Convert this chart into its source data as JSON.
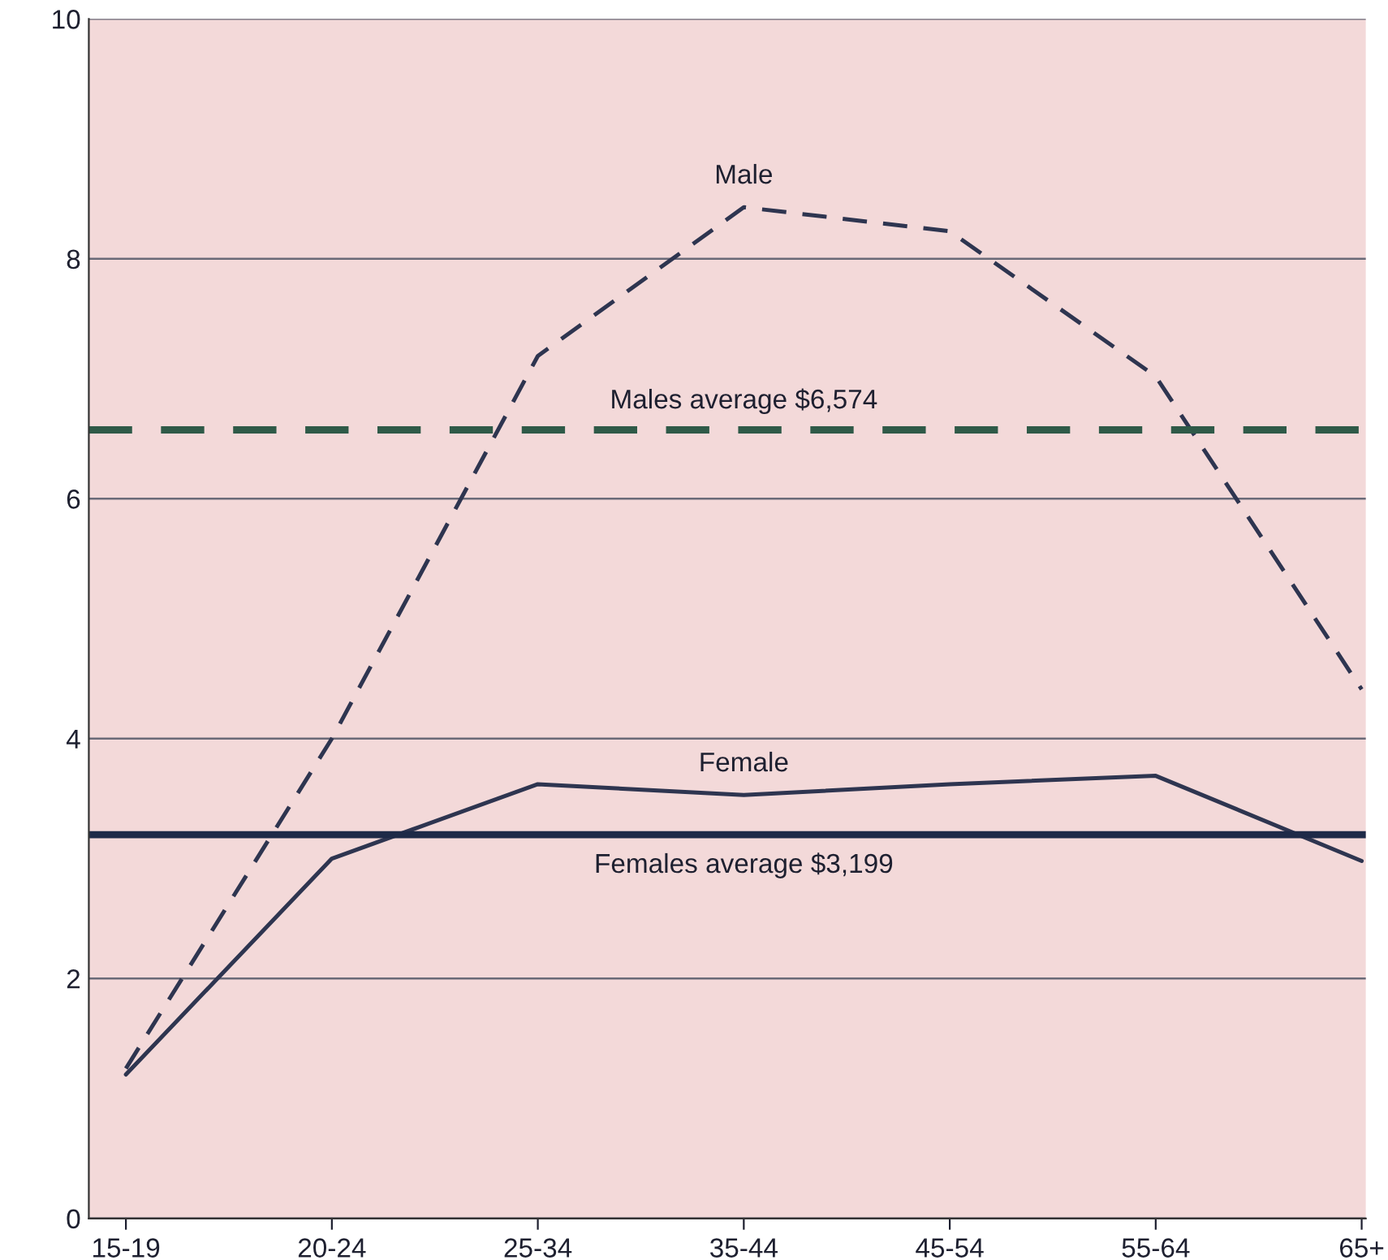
{
  "chart_data": {
    "type": "line",
    "categories": [
      "15-19",
      "20-24",
      "25-34",
      "35-44",
      "45-54",
      "55-64",
      "65+"
    ],
    "series": [
      {
        "name": "Male",
        "color": "#2e3550",
        "values": [
          1.25,
          4.0,
          7.19,
          8.43,
          8.23,
          7.02,
          4.41
        ],
        "line_style": "dashed"
      },
      {
        "name": "Female",
        "color": "#2e3550",
        "values": [
          1.2,
          3.0,
          3.62,
          3.53,
          3.62,
          3.69,
          2.98
        ],
        "line_style": "solid"
      }
    ],
    "ref_lines": [
      {
        "axis": "y",
        "value": 6.574,
        "label": "Males average $6,574",
        "color": "#2f5a48",
        "line_style": "dashed"
      },
      {
        "axis": "y",
        "value": 3.199,
        "label": "Females average $3,199",
        "color": "#1e2a48",
        "line_style": "solid"
      }
    ],
    "ylim": [
      0,
      10
    ],
    "yticks": [
      0,
      2,
      4,
      6,
      8,
      10
    ],
    "grid": "y",
    "legend": false,
    "marker": "none"
  }
}
